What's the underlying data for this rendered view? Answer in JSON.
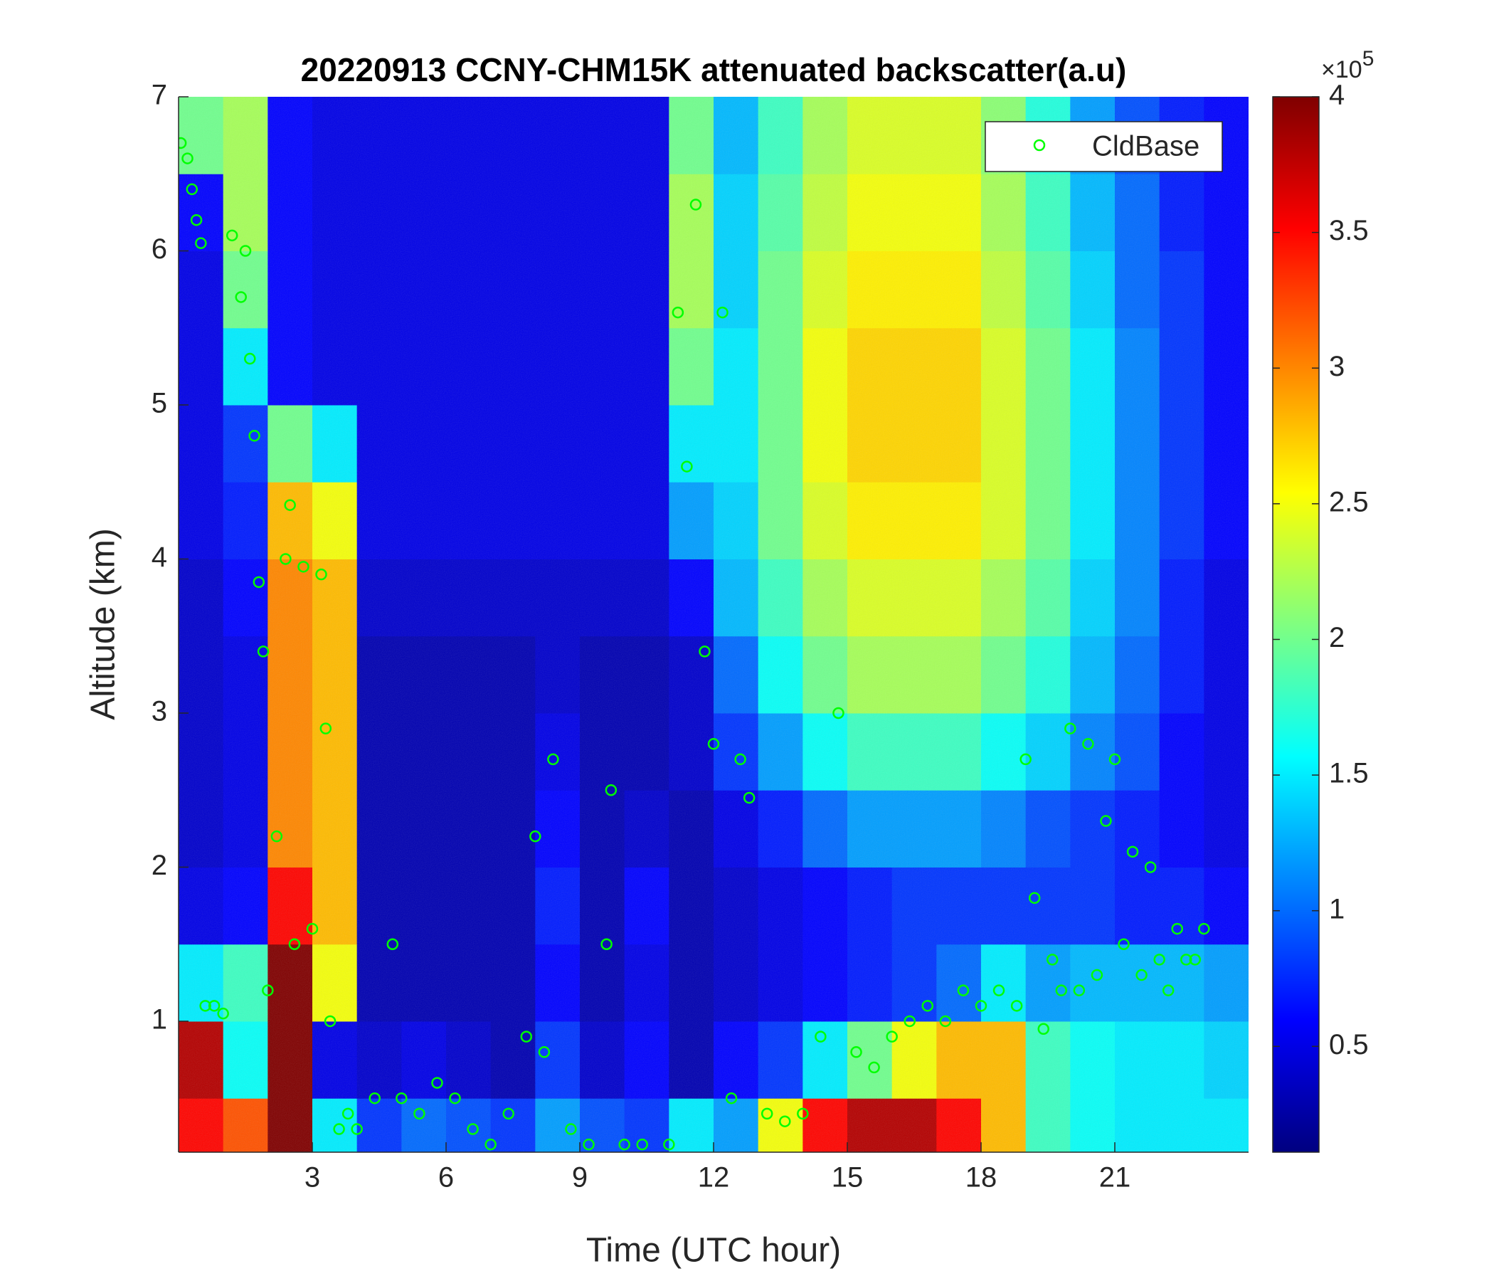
{
  "chart_data": {
    "type": "heatmap",
    "title": "20220913 CCNY-CHM15K attenuated backscatter(a.u)",
    "xlabel": "Time (UTC hour)",
    "ylabel": "Altitude (km)",
    "colormap": "jet",
    "xlim": [
      0,
      24
    ],
    "ylim": [
      0.15,
      7
    ],
    "xticks": [
      3,
      6,
      9,
      12,
      15,
      18,
      21
    ],
    "yticks": [
      1,
      2,
      3,
      4,
      5,
      6,
      7
    ],
    "clim": [
      0.11,
      4
    ],
    "cticks": [
      0.5,
      1,
      1.5,
      2,
      2.5,
      3,
      3.5,
      4
    ],
    "colorbar_multiplier": {
      "base": "×10",
      "exponent": 5
    },
    "x_bins": [
      0,
      1,
      2,
      3,
      4,
      5,
      6,
      7,
      8,
      9,
      10,
      11,
      12,
      13,
      14,
      15,
      16,
      17,
      18,
      19,
      20,
      21,
      22,
      23,
      24
    ],
    "y_bins": [
      0.15,
      0.5,
      1,
      1.5,
      2,
      2.5,
      3,
      3.5,
      4,
      4.5,
      5,
      5.5,
      6,
      6.5,
      7
    ],
    "z": [
      [
        3.5,
        3.2,
        4,
        1.5,
        0.8,
        1.0,
        0.9,
        0.8,
        1.2,
        0.9,
        0.8,
        1.5,
        1.2,
        2.5,
        3.5,
        3.8,
        3.8,
        3.5,
        2.8,
        1.8,
        1.6,
        1.5,
        1.5,
        1.5
      ],
      [
        3.8,
        1.6,
        4,
        0.5,
        0.4,
        0.5,
        0.4,
        0.3,
        0.8,
        0.4,
        0.6,
        0.3,
        0.6,
        0.8,
        1.5,
        2.0,
        2.5,
        2.8,
        2.8,
        1.8,
        1.6,
        1.5,
        1.5,
        1.4
      ],
      [
        1.5,
        1.8,
        4,
        2.5,
        0.3,
        0.3,
        0.3,
        0.3,
        0.6,
        0.3,
        0.5,
        0.3,
        0.4,
        0.5,
        0.6,
        0.7,
        0.8,
        1.0,
        1.5,
        1.2,
        1.3,
        1.3,
        1.3,
        1.2
      ],
      [
        0.5,
        0.6,
        3.5,
        2.8,
        0.3,
        0.3,
        0.3,
        0.3,
        0.7,
        0.3,
        0.6,
        0.3,
        0.4,
        0.5,
        0.6,
        0.7,
        0.8,
        0.8,
        0.8,
        0.8,
        0.8,
        0.7,
        0.7,
        0.6
      ],
      [
        0.4,
        0.5,
        3.0,
        2.8,
        0.3,
        0.3,
        0.3,
        0.3,
        0.6,
        0.3,
        0.4,
        0.3,
        0.5,
        0.7,
        1.0,
        1.2,
        1.2,
        1.2,
        1.1,
        0.9,
        0.8,
        0.7,
        0.6,
        0.5
      ],
      [
        0.4,
        0.5,
        3.0,
        2.8,
        0.3,
        0.3,
        0.3,
        0.3,
        0.5,
        0.3,
        0.3,
        0.4,
        0.8,
        1.2,
        1.6,
        1.8,
        1.8,
        1.8,
        1.6,
        1.4,
        1.1,
        0.9,
        0.6,
        0.5
      ],
      [
        0.4,
        0.5,
        3.0,
        2.8,
        0.3,
        0.3,
        0.3,
        0.3,
        0.4,
        0.3,
        0.3,
        0.4,
        1.0,
        1.6,
        2.0,
        2.2,
        2.2,
        2.2,
        2.0,
        1.7,
        1.3,
        1.0,
        0.7,
        0.5
      ],
      [
        0.4,
        0.6,
        3.0,
        2.8,
        0.4,
        0.4,
        0.4,
        0.4,
        0.4,
        0.4,
        0.4,
        0.6,
        1.3,
        1.8,
        2.2,
        2.4,
        2.4,
        2.4,
        2.2,
        1.9,
        1.4,
        1.1,
        0.7,
        0.5
      ],
      [
        0.5,
        0.7,
        2.8,
        2.5,
        0.5,
        0.5,
        0.5,
        0.5,
        0.5,
        0.5,
        0.5,
        1.2,
        1.4,
        2.0,
        2.4,
        2.6,
        2.6,
        2.6,
        2.4,
        2.0,
        1.5,
        1.1,
        0.8,
        0.6
      ],
      [
        0.5,
        0.8,
        2.0,
        1.5,
        0.5,
        0.5,
        0.5,
        0.5,
        0.5,
        0.5,
        0.5,
        1.5,
        1.5,
        2.0,
        2.5,
        2.7,
        2.7,
        2.7,
        2.4,
        2.0,
        1.5,
        1.1,
        0.8,
        0.6
      ],
      [
        0.5,
        1.5,
        0.6,
        0.5,
        0.5,
        0.5,
        0.5,
        0.5,
        0.5,
        0.5,
        0.5,
        2.0,
        1.5,
        2.0,
        2.5,
        2.7,
        2.7,
        2.7,
        2.4,
        2.0,
        1.5,
        1.1,
        0.8,
        0.6
      ],
      [
        0.5,
        2.0,
        0.6,
        0.5,
        0.5,
        0.5,
        0.5,
        0.5,
        0.5,
        0.5,
        0.5,
        2.2,
        1.4,
        2.0,
        2.4,
        2.6,
        2.6,
        2.6,
        2.3,
        1.9,
        1.4,
        1.0,
        0.8,
        0.6
      ],
      [
        0.6,
        2.2,
        0.6,
        0.5,
        0.5,
        0.5,
        0.5,
        0.5,
        0.5,
        0.5,
        0.5,
        2.2,
        1.4,
        1.9,
        2.3,
        2.5,
        2.5,
        2.5,
        2.2,
        1.8,
        1.3,
        1.0,
        0.7,
        0.6
      ],
      [
        2.0,
        2.2,
        0.6,
        0.5,
        0.5,
        0.5,
        0.5,
        0.5,
        0.5,
        0.5,
        0.5,
        2.0,
        1.3,
        1.8,
        2.2,
        2.4,
        2.4,
        2.4,
        2.1,
        1.7,
        1.2,
        0.9,
        0.7,
        0.6
      ]
    ],
    "series": [
      {
        "name": "CldBase",
        "type": "scatter",
        "color": "#00ff00",
        "x": [
          0.05,
          0.2,
          0.3,
          0.4,
          0.5,
          0.6,
          0.8,
          1.0,
          1.2,
          1.4,
          1.5,
          1.6,
          1.7,
          1.8,
          1.9,
          2.0,
          2.2,
          2.4,
          2.5,
          2.6,
          2.8,
          3.0,
          3.2,
          3.3,
          3.4,
          3.6,
          3.8,
          4.0,
          4.4,
          4.8,
          5.0,
          5.4,
          5.8,
          6.2,
          6.6,
          7.0,
          7.4,
          7.8,
          8.0,
          8.2,
          8.4,
          8.8,
          9.2,
          9.6,
          9.7,
          10.0,
          10.4,
          11.0,
          11.2,
          11.4,
          11.6,
          11.8,
          12.0,
          12.2,
          12.4,
          12.6,
          12.8,
          13.2,
          13.6,
          14.0,
          14.4,
          14.8,
          15.2,
          15.6,
          16.0,
          16.4,
          16.8,
          17.2,
          17.6,
          18.0,
          18.4,
          18.8,
          19.0,
          19.2,
          19.4,
          19.6,
          19.8,
          20.0,
          20.2,
          20.4,
          20.6,
          20.8,
          21.0,
          21.2,
          21.4,
          21.6,
          21.8,
          22.0,
          22.2,
          22.4,
          22.6,
          22.8,
          23.0
        ],
        "y": [
          6.7,
          6.6,
          6.4,
          6.2,
          6.05,
          1.1,
          1.1,
          1.05,
          6.1,
          5.7,
          6.0,
          5.3,
          4.8,
          3.85,
          3.4,
          1.2,
          2.2,
          4.0,
          4.35,
          1.5,
          3.95,
          1.6,
          3.9,
          2.9,
          1.0,
          0.3,
          0.4,
          0.3,
          0.5,
          1.5,
          0.5,
          0.4,
          0.6,
          0.5,
          0.3,
          0.2,
          0.4,
          0.9,
          2.2,
          0.8,
          2.7,
          0.3,
          0.2,
          1.5,
          2.5,
          0.2,
          0.2,
          0.2,
          5.6,
          4.6,
          6.3,
          3.4,
          2.8,
          5.6,
          0.5,
          2.7,
          2.45,
          0.4,
          0.35,
          0.4,
          0.9,
          3.0,
          0.8,
          0.7,
          0.9,
          1.0,
          1.1,
          1.0,
          1.2,
          1.1,
          1.2,
          1.1,
          2.7,
          1.8,
          0.95,
          1.4,
          1.2,
          2.9,
          1.2,
          2.8,
          1.3,
          2.3,
          2.7,
          1.5,
          2.1,
          1.3,
          2.0,
          1.4,
          1.2,
          1.6,
          1.4,
          1.4,
          1.6
        ]
      }
    ],
    "legend": "northeast"
  }
}
